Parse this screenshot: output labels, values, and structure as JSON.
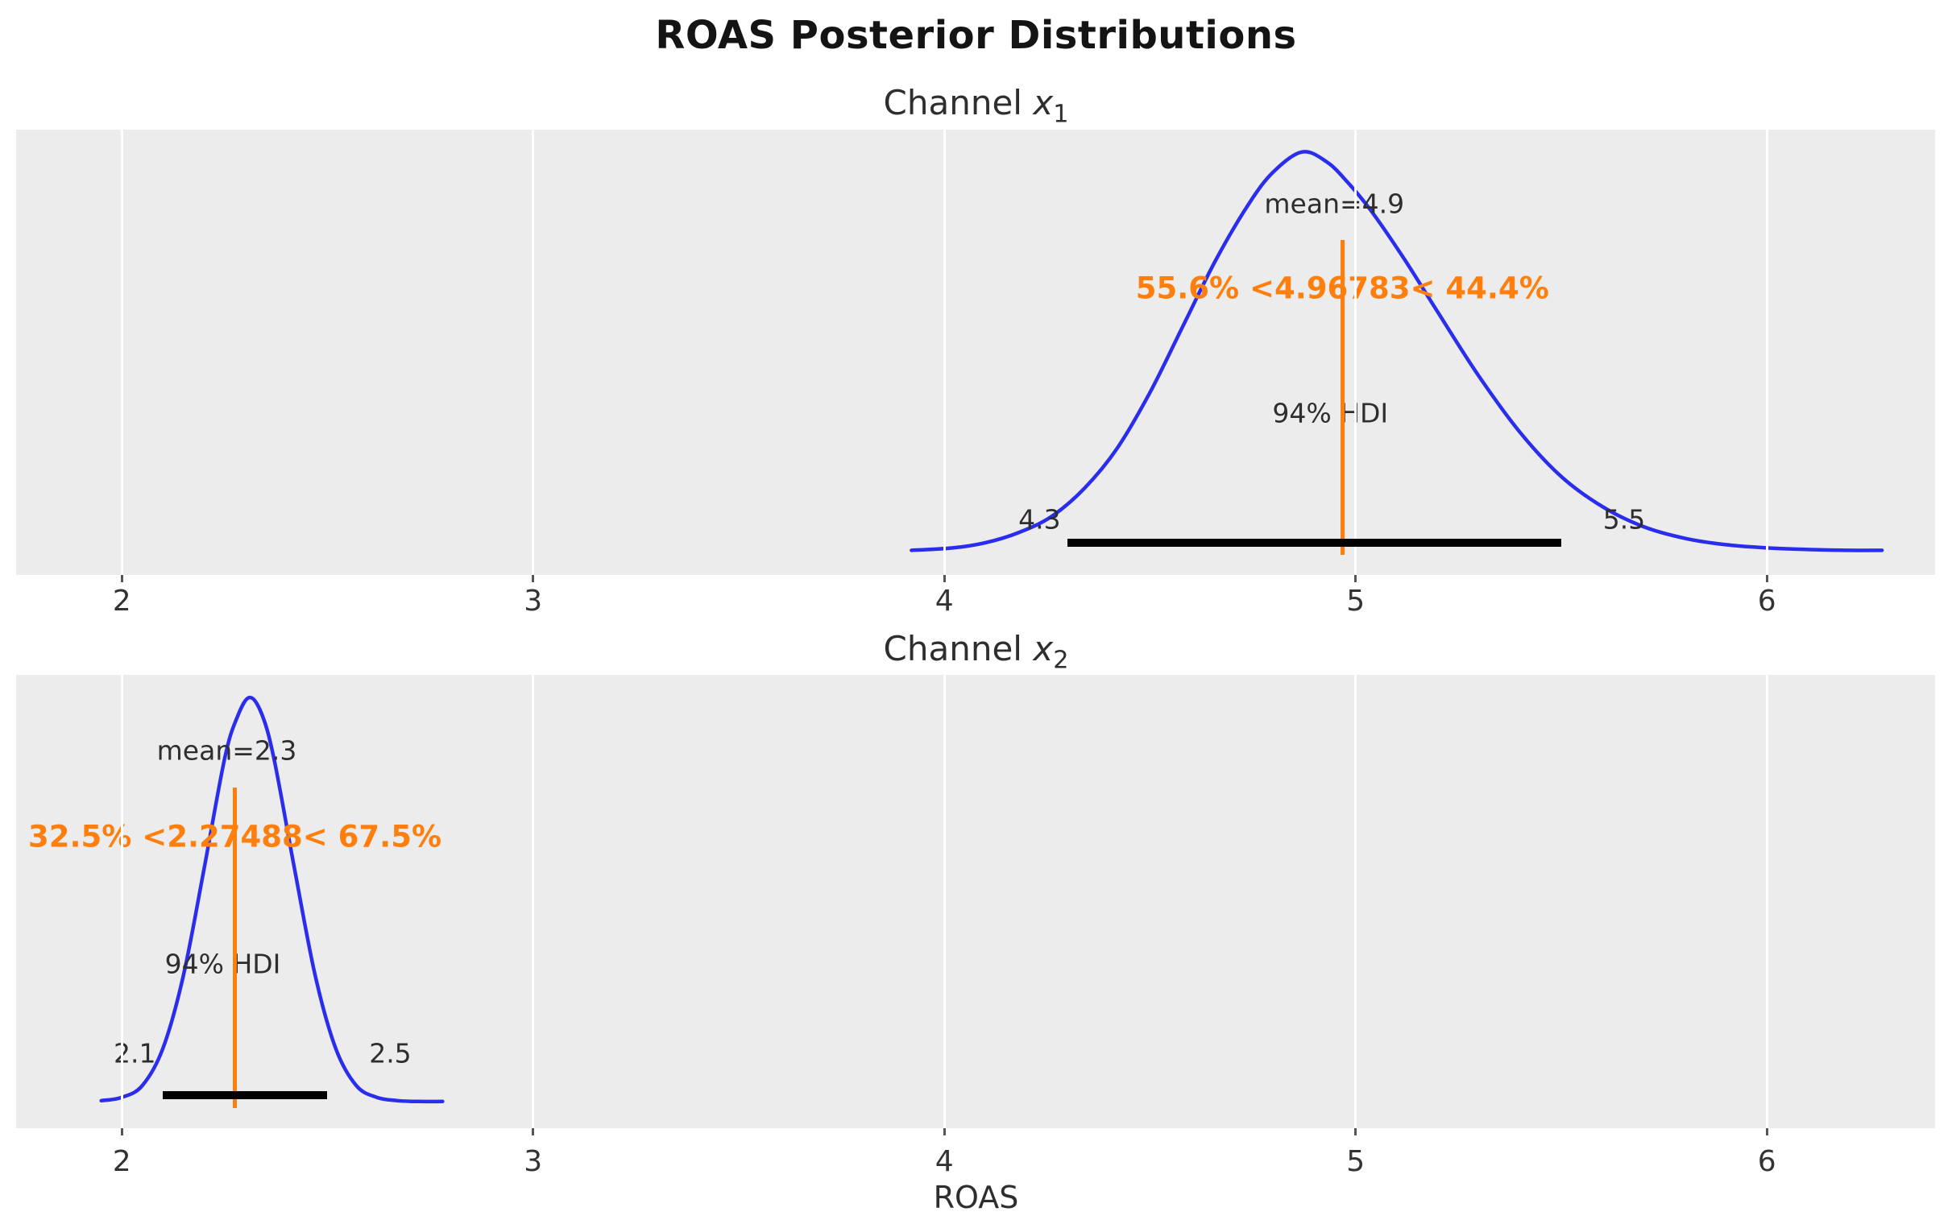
{
  "chart_data": {
    "type": "line",
    "title": "ROAS Posterior Distributions",
    "xlabel": "ROAS",
    "x_axis": {
      "min": 1.743,
      "max": 6.409,
      "ticks": [
        2,
        3,
        4,
        5,
        6
      ],
      "tick_labels": [
        "2",
        "3",
        "4",
        "5",
        "6"
      ]
    },
    "grid": "vertical white gridlines on gray panel",
    "legend": "none",
    "colors": {
      "curve": "#2a2eec",
      "ref": "#ff7f0e",
      "hdi_bar": "#000000",
      "plot_bg": "#ececec",
      "grid": "#ffffff",
      "text": "#2e2e2e",
      "title": "#141414",
      "tick": "#555555"
    },
    "subplots": [
      {
        "title_prefix": "Channel ",
        "title_var": "x",
        "title_sub": "1",
        "mean": 4.9,
        "mean_label": "mean=4.9",
        "ref_value": 4.96783,
        "ref_label": "55.6% <4.96783< 44.4%",
        "pct_below": 55.6,
        "pct_above": 44.4,
        "hdi_text": "94% HDI",
        "hdi_prob": 0.94,
        "hdi_low": 4.3,
        "hdi_high": 5.5,
        "hdi_low_label": "4.3",
        "hdi_high_label": "5.5",
        "curve": [
          [
            3.92,
            0.006
          ],
          [
            4.02,
            0.012
          ],
          [
            4.1,
            0.025
          ],
          [
            4.18,
            0.05
          ],
          [
            4.26,
            0.09
          ],
          [
            4.34,
            0.16
          ],
          [
            4.42,
            0.26
          ],
          [
            4.5,
            0.4
          ],
          [
            4.58,
            0.565
          ],
          [
            4.66,
            0.73
          ],
          [
            4.74,
            0.87
          ],
          [
            4.8,
            0.95
          ],
          [
            4.87,
            1.0
          ],
          [
            4.93,
            0.975
          ],
          [
            4.98,
            0.925
          ],
          [
            5.04,
            0.85
          ],
          [
            5.12,
            0.73
          ],
          [
            5.2,
            0.6
          ],
          [
            5.3,
            0.44
          ],
          [
            5.4,
            0.3
          ],
          [
            5.5,
            0.19
          ],
          [
            5.6,
            0.115
          ],
          [
            5.7,
            0.065
          ],
          [
            5.8,
            0.036
          ],
          [
            5.9,
            0.02
          ],
          [
            6.0,
            0.012
          ],
          [
            6.1,
            0.008
          ],
          [
            6.2,
            0.006
          ],
          [
            6.28,
            0.006
          ]
        ]
      },
      {
        "title_prefix": "Channel ",
        "title_var": "x",
        "title_sub": "2",
        "mean": 2.3,
        "mean_label": "mean=2.3",
        "ref_value": 2.27488,
        "ref_label": "32.5% <2.27488< 67.5%",
        "pct_below": 32.5,
        "pct_above": 67.5,
        "hdi_text": "94% HDI",
        "hdi_prob": 0.94,
        "hdi_low": 2.1,
        "hdi_high": 2.5,
        "hdi_low_label": "2.1",
        "hdi_high_label": "2.5",
        "curve": [
          [
            1.95,
            0.012
          ],
          [
            2.0,
            0.02
          ],
          [
            2.05,
            0.049
          ],
          [
            2.1,
            0.14
          ],
          [
            2.15,
            0.32
          ],
          [
            2.2,
            0.58
          ],
          [
            2.25,
            0.85
          ],
          [
            2.28,
            0.95
          ],
          [
            2.31,
            1.0
          ],
          [
            2.34,
            0.96
          ],
          [
            2.37,
            0.85
          ],
          [
            2.42,
            0.58
          ],
          [
            2.47,
            0.32
          ],
          [
            2.52,
            0.14
          ],
          [
            2.57,
            0.049
          ],
          [
            2.62,
            0.02
          ],
          [
            2.67,
            0.012
          ],
          [
            2.72,
            0.01
          ],
          [
            2.78,
            0.01
          ]
        ]
      }
    ]
  }
}
